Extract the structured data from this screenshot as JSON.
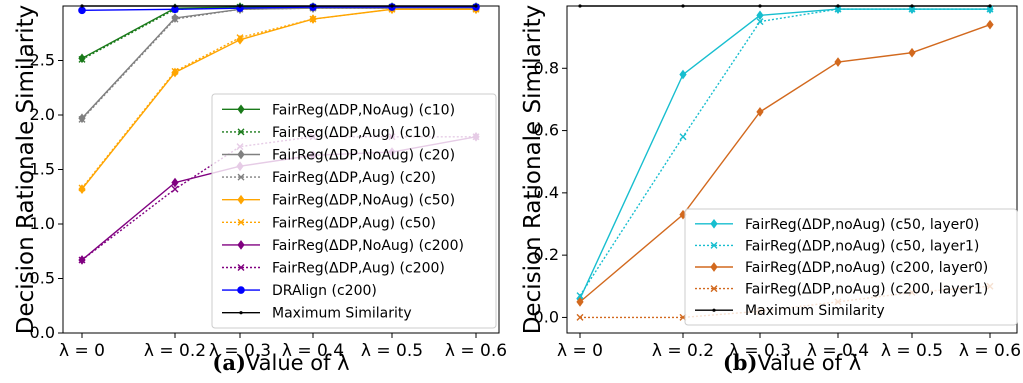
{
  "chart_data": [
    {
      "type": "line",
      "panel_label": "(a)",
      "xlabel": "Value of λ",
      "ylabel": "Decision Rationale Similarity",
      "x_tick_labels": [
        "λ = 0",
        "λ = 0.2",
        "λ = 0.3",
        "λ = 0.4",
        "λ = 0.5",
        "λ = 0.6"
      ],
      "y_ticks": [
        0.0,
        0.5,
        1.0,
        1.5,
        2.0,
        2.5
      ],
      "y_tick_labels": [
        "0.0",
        "0.5",
        "1.0",
        "1.5",
        "2.0",
        "2.5"
      ],
      "ylim": [
        0.0,
        3.0
      ],
      "legend_position": "center-right",
      "grid": false,
      "series": [
        {
          "name": "FairReg(ΔDP,NoAug) (c10)",
          "color": "#1a7a1a",
          "style": "solid",
          "marker": "diamond",
          "values": [
            2.52,
            2.98,
            2.99,
            2.99,
            2.99,
            2.99
          ]
        },
        {
          "name": "FairReg(ΔDP,Aug) (c10)",
          "color": "#1a7a1a",
          "style": "dotted",
          "marker": "x",
          "values": [
            2.51,
            2.97,
            2.99,
            2.99,
            2.99,
            2.99
          ]
        },
        {
          "name": "FairReg(ΔDP,NoAug) (c20)",
          "color": "#808080",
          "style": "solid",
          "marker": "diamond",
          "values": [
            1.97,
            2.89,
            2.97,
            2.98,
            2.98,
            2.98
          ]
        },
        {
          "name": "FairReg(ΔDP,Aug) (c20)",
          "color": "#808080",
          "style": "dotted",
          "marker": "x",
          "values": [
            1.96,
            2.88,
            2.97,
            2.98,
            2.98,
            2.98
          ]
        },
        {
          "name": "FairReg(ΔDP,NoAug) (c50)",
          "color": "#ffa500",
          "style": "solid",
          "marker": "diamond",
          "values": [
            1.32,
            2.39,
            2.69,
            2.88,
            2.97,
            2.97
          ]
        },
        {
          "name": "FairReg(ΔDP,Aug) (c50)",
          "color": "#ffa500",
          "style": "dotted",
          "marker": "x",
          "values": [
            1.33,
            2.4,
            2.71,
            2.88,
            2.97,
            2.97
          ]
        },
        {
          "name": "FairReg(ΔDP,NoAug) (c200)",
          "color": "#800080",
          "style": "solid",
          "marker": "diamond",
          "values": [
            0.67,
            1.38,
            1.53,
            1.63,
            1.66,
            1.8
          ]
        },
        {
          "name": "FairReg(ΔDP,Aug) (c200)",
          "color": "#800080",
          "style": "dotted",
          "marker": "x",
          "values": [
            0.67,
            1.32,
            1.71,
            1.8,
            1.8,
            1.8
          ]
        },
        {
          "name": "DRAlign (c200)",
          "color": "#0000ff",
          "style": "solid",
          "marker": "circle",
          "values": [
            2.96,
            2.97,
            2.98,
            2.99,
            2.99,
            2.99
          ]
        },
        {
          "name": "Maximum Similarity",
          "color": "#000000",
          "style": "solid",
          "marker": "dot",
          "values": [
            3.0,
            3.0,
            3.0,
            3.0,
            3.0,
            3.0
          ]
        }
      ]
    },
    {
      "type": "line",
      "panel_label": "(b)",
      "xlabel": "Value of λ",
      "ylabel": "Decision Rationale Similarity",
      "x_tick_labels": [
        "λ = 0",
        "λ = 0.2",
        "λ = 0.3",
        "λ = 0.4",
        "λ = 0.5",
        "λ = 0.6"
      ],
      "y_ticks": [
        0.0,
        0.2,
        0.4,
        0.6,
        0.8
      ],
      "y_tick_labels": [
        "0.0",
        "0.2",
        "0.4",
        "0.6",
        "0.8"
      ],
      "ylim": [
        -0.05,
        1.0
      ],
      "legend_position": "lower-right",
      "grid": false,
      "series": [
        {
          "name": "FairReg(ΔDP,noAug) (c50, layer0)",
          "color": "#17becf",
          "style": "solid",
          "marker": "diamond",
          "values": [
            0.06,
            0.78,
            0.97,
            0.99,
            0.99,
            0.99
          ]
        },
        {
          "name": "FairReg(ΔDP,noAug) (c50, layer1)",
          "color": "#17becf",
          "style": "dotted",
          "marker": "x",
          "values": [
            0.07,
            0.58,
            0.95,
            0.99,
            0.99,
            0.99
          ]
        },
        {
          "name": "FairReg(ΔDP,noAug) (c200, layer0)",
          "color": "#d2691e",
          "style": "solid",
          "marker": "diamond",
          "values": [
            0.05,
            0.33,
            0.66,
            0.82,
            0.85,
            0.94
          ]
        },
        {
          "name": "FairReg(ΔDP,noAug) (c200, layer1)",
          "color": "#d2691e",
          "style": "dotted",
          "marker": "x",
          "values": [
            0.0,
            0.0,
            0.02,
            0.05,
            0.08,
            0.1
          ]
        },
        {
          "name": "Maximum Similarity",
          "color": "#000000",
          "style": "solid",
          "marker": "dot",
          "values": [
            1.0,
            1.0,
            1.0,
            1.0,
            1.0,
            1.0
          ]
        }
      ]
    }
  ]
}
